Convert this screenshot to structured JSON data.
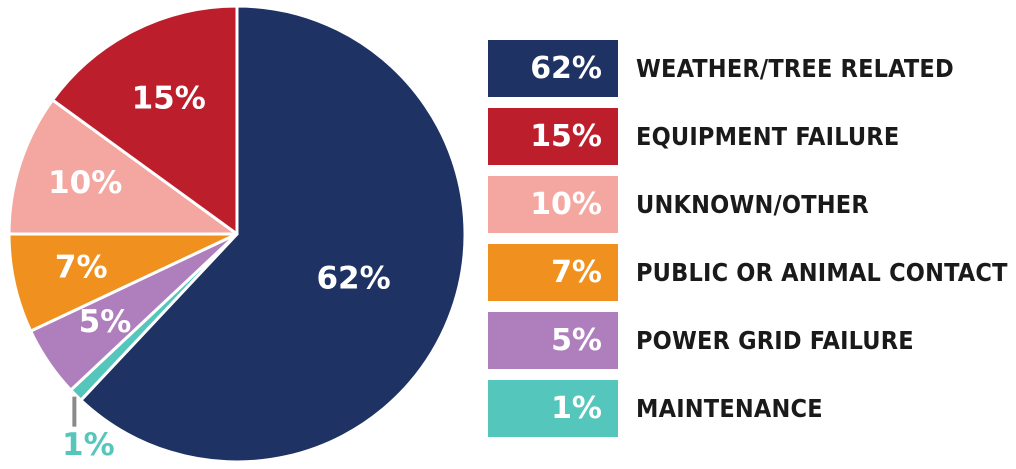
{
  "chart_data": {
    "type": "pie",
    "slices": [
      {
        "label": "WEATHER/TREE RELATED",
        "value": 62,
        "display": "62%",
        "color": "#1e3263"
      },
      {
        "label": "MAINTENANCE",
        "value": 1,
        "display": "1%",
        "color": "#55c6bb"
      },
      {
        "label": "POWER GRID FAILURE",
        "value": 5,
        "display": "5%",
        "color": "#ae7ebd"
      },
      {
        "label": "PUBLIC OR ANIMAL CONTACT",
        "value": 7,
        "display": "7%",
        "color": "#f0901e"
      },
      {
        "label": "UNKNOWN/OTHER",
        "value": 10,
        "display": "10%",
        "color": "#f4a7a0"
      },
      {
        "label": "EQUIPMENT FAILURE",
        "value": 15,
        "display": "15%",
        "color": "#bd1e2c"
      }
    ],
    "legend": [
      {
        "display": "62%",
        "label": "WEATHER/TREE RELATED",
        "color": "#1e3263"
      },
      {
        "display": "15%",
        "label": "EQUIPMENT FAILURE",
        "color": "#bd1e2c"
      },
      {
        "display": "10%",
        "label": "UNKNOWN/OTHER",
        "color": "#f4a7a0"
      },
      {
        "display": "7%",
        "label": "PUBLIC OR ANIMAL CONTACT",
        "color": "#f0901e"
      },
      {
        "display": "5%",
        "label": "POWER GRID FAILURE",
        "color": "#ae7ebd"
      },
      {
        "display": "1%",
        "label": "MAINTENANCE",
        "color": "#55c6bb"
      }
    ],
    "legend_placement": "right"
  }
}
